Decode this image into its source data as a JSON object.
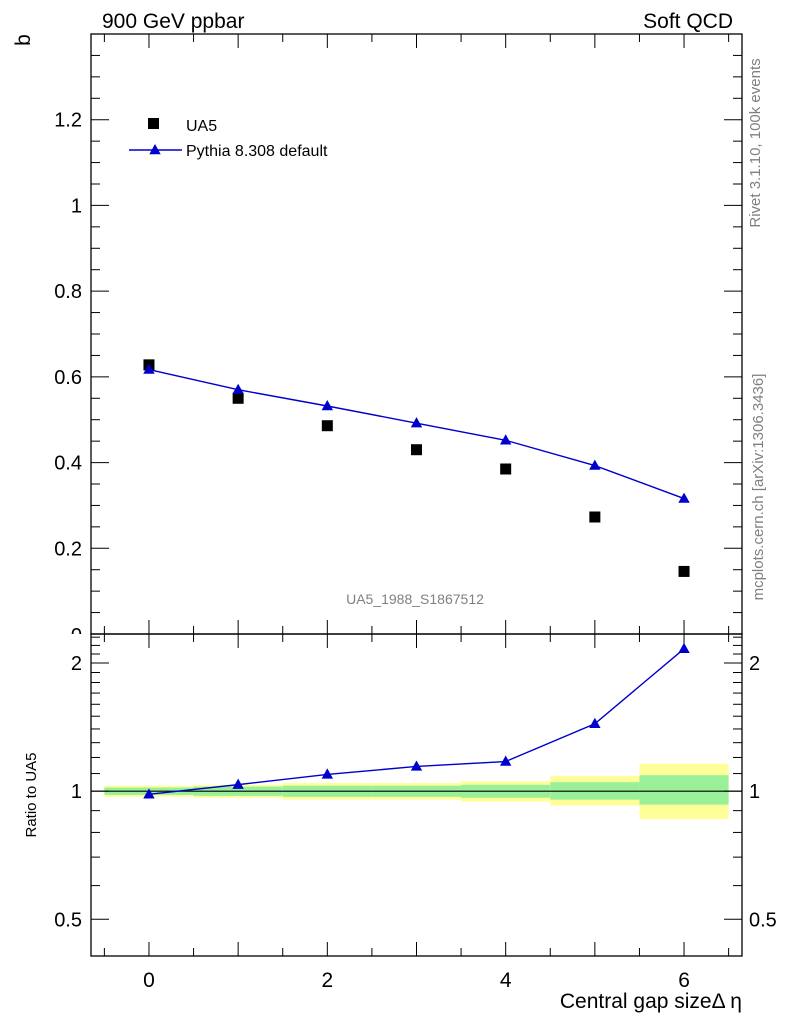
{
  "header": {
    "left_title": "900 GeV ppbar",
    "right_title": "Soft QCD"
  },
  "side_labels": {
    "rivet": "Rivet 3.1.10,  100k events",
    "mcplots": "mcplots.cern.ch [arXiv:1306.3436]"
  },
  "watermark": "UA5_1988_S1867512",
  "chart_data": [
    {
      "type": "scatter",
      "panel": "main",
      "ylabel": "b",
      "xlim": [
        -0.65,
        6.65
      ],
      "ylim": [
        0,
        1.4
      ],
      "y_ticks": [
        0.2,
        0.4,
        0.6,
        0.8,
        1,
        1.2
      ],
      "y_tick_labels": [
        "0.2",
        "0.4",
        "0.6",
        "0.8",
        "1",
        "1.2"
      ],
      "y_axis_partial_label": "0",
      "legend_position": "top-left",
      "series": [
        {
          "name": "UA5",
          "style": "markers",
          "marker": "square",
          "color": "#000000",
          "x": [
            0,
            1,
            2,
            3,
            4,
            5,
            6
          ],
          "y": [
            0.628,
            0.55,
            0.486,
            0.43,
            0.385,
            0.273,
            0.146
          ]
        },
        {
          "name": "Pythia 8.308 default",
          "style": "line+markers",
          "marker": "triangle",
          "color": "#0000cc",
          "x": [
            0,
            1,
            2,
            3,
            4,
            5,
            6
          ],
          "y": [
            0.617,
            0.57,
            0.532,
            0.492,
            0.452,
            0.393,
            0.316
          ]
        }
      ]
    },
    {
      "type": "line",
      "panel": "ratio",
      "ylabel": "Ratio to UA5",
      "xlabel": "Central gap sizeΔ η",
      "xlim": [
        -0.65,
        6.65
      ],
      "ylim": [
        0.41,
        2.34
      ],
      "log_y": true,
      "x_ticks": [
        0,
        2,
        4,
        6
      ],
      "x_tick_labels": [
        "0",
        "2",
        "4",
        "6"
      ],
      "y_ticks": [
        0.5,
        1,
        2
      ],
      "y_tick_labels": [
        "0.5",
        "1",
        "2"
      ],
      "bands": {
        "x_low": [
          -0.5,
          0.5,
          1.5,
          2.5,
          3.5,
          4.5,
          5.5
        ],
        "x_high": [
          0.5,
          1.5,
          2.5,
          3.5,
          4.5,
          5.5,
          6.5
        ],
        "inner_low": [
          0.98,
          0.975,
          0.97,
          0.97,
          0.965,
          0.955,
          0.93
        ],
        "inner_high": [
          1.02,
          1.025,
          1.03,
          1.03,
          1.035,
          1.05,
          1.09
        ],
        "outer_low": [
          0.97,
          0.965,
          0.955,
          0.955,
          0.945,
          0.925,
          0.86
        ],
        "outer_high": [
          1.03,
          1.035,
          1.045,
          1.045,
          1.055,
          1.085,
          1.16
        ],
        "inner_color": "#99f099",
        "outer_color": "#ffff99"
      },
      "series": [
        {
          "name": "Pythia 8.308 default",
          "marker": "triangle",
          "color": "#0000cc",
          "x": [
            0,
            1,
            2,
            3,
            4,
            5,
            6
          ],
          "y": [
            0.983,
            1.036,
            1.095,
            1.143,
            1.174,
            1.44,
            2.16
          ]
        }
      ]
    }
  ]
}
